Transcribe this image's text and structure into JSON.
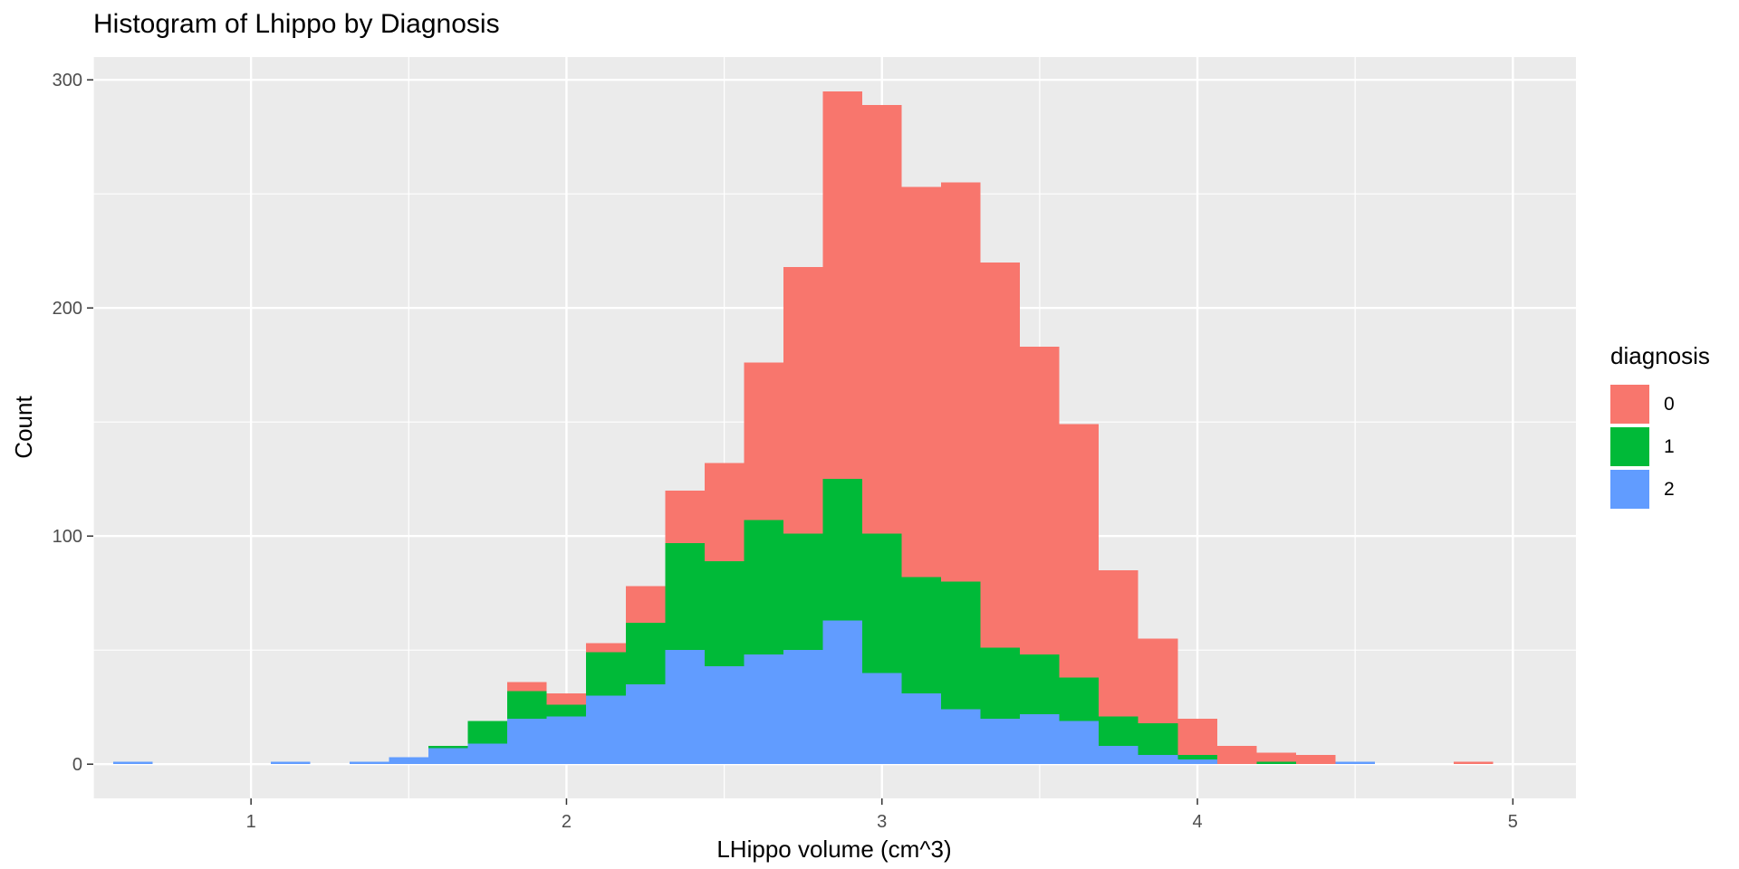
{
  "chart_data": {
    "type": "bar",
    "stacked": true,
    "title": "Histogram of Lhippo by Diagnosis",
    "xlabel": "LHippo volume (cm^3)",
    "ylabel": "Count",
    "xlim": [
      0.5,
      5.2
    ],
    "ylim": [
      -15,
      310
    ],
    "xticks": [
      1,
      2,
      3,
      4,
      5
    ],
    "yticks": [
      0,
      100,
      200,
      300
    ],
    "grid": true,
    "legend_position": "right",
    "legend_title": "diagnosis",
    "bin_width": 0.125,
    "bin_centers": [
      0.625,
      0.75,
      0.875,
      1.0,
      1.125,
      1.25,
      1.375,
      1.5,
      1.625,
      1.75,
      1.875,
      2.0,
      2.125,
      2.25,
      2.375,
      2.5,
      2.625,
      2.75,
      2.875,
      3.0,
      3.125,
      3.25,
      3.375,
      3.5,
      3.625,
      3.75,
      3.875,
      4.0,
      4.125,
      4.25,
      4.375,
      4.5,
      4.625,
      4.75,
      4.875
    ],
    "series": [
      {
        "name": "2",
        "color": "#619CFF",
        "values": [
          1,
          0,
          0,
          0,
          1,
          0,
          1,
          3,
          7,
          9,
          20,
          21,
          30,
          35,
          50,
          43,
          48,
          50,
          63,
          40,
          31,
          24,
          20,
          22,
          19,
          8,
          4,
          2,
          0,
          0,
          0,
          1,
          0,
          0,
          0
        ]
      },
      {
        "name": "1",
        "color": "#00BA38",
        "values": [
          0,
          0,
          0,
          0,
          0,
          0,
          0,
          0,
          1,
          10,
          12,
          5,
          19,
          27,
          47,
          46,
          59,
          51,
          62,
          61,
          51,
          56,
          31,
          26,
          19,
          13,
          14,
          2,
          0,
          1,
          0,
          0,
          0,
          0,
          0
        ]
      },
      {
        "name": "0",
        "color": "#F8766D",
        "values": [
          0,
          0,
          0,
          0,
          0,
          0,
          0,
          0,
          0,
          0,
          4,
          5,
          4,
          16,
          23,
          43,
          69,
          117,
          170,
          188,
          171,
          175,
          169,
          135,
          111,
          64,
          37,
          16,
          8,
          4,
          4,
          0,
          0,
          0,
          1
        ]
      }
    ]
  }
}
